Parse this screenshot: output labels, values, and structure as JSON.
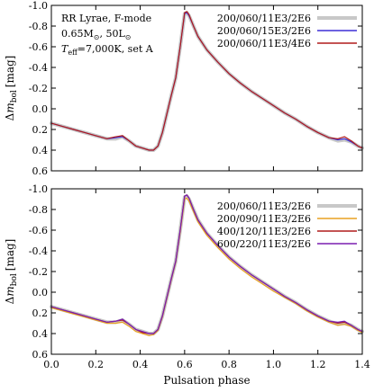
{
  "chart_data": [
    {
      "type": "line",
      "panel": "top",
      "xlabel": "",
      "ylabel": "Δm_bol [mag]",
      "ylabel_parts": {
        "delta": "Δ",
        "m": "m",
        "sub": "bol",
        "unit": "[mag]"
      },
      "xlim": [
        0.0,
        1.4
      ],
      "ylim": [
        0.6,
        -1.0
      ],
      "y_inverted": true,
      "x_ticks": [
        0.0,
        0.2,
        0.4,
        0.6,
        0.8,
        1.0,
        1.2,
        1.4
      ],
      "y_ticks": [
        -1.0,
        -0.8,
        -0.6,
        -0.4,
        -0.2,
        0.0,
        0.2,
        0.4,
        0.6
      ],
      "x_tick_labels": [
        "",
        "",
        "",
        "",
        "",
        "",
        "",
        ""
      ],
      "y_tick_labels": [
        "-1.0",
        "-0.8",
        "-0.6",
        "-0.4",
        "-0.2",
        "0.0",
        "0.2",
        "0.4",
        "0.6"
      ],
      "grid": false,
      "legend_position": "top-right",
      "annotation": {
        "line1": "RR Lyrae, F-mode",
        "line2_a": "0.65M",
        "line2_b": ", 50L",
        "line3_T": "T",
        "line3_sub": "eff",
        "line3_rest": "=7,000K, set A"
      },
      "series": [
        {
          "name": "200/060/11E3/2E6",
          "color": "#c8c8c8",
          "x": [
            0.0,
            0.05,
            0.1,
            0.15,
            0.2,
            0.25,
            0.29,
            0.32,
            0.35,
            0.38,
            0.41,
            0.44,
            0.46,
            0.48,
            0.5,
            0.52,
            0.54,
            0.56,
            0.58,
            0.6,
            0.61,
            0.62,
            0.64,
            0.66,
            0.7,
            0.75,
            0.8,
            0.85,
            0.9,
            0.95,
            1.0,
            1.05,
            1.1,
            1.15,
            1.2,
            1.25,
            1.29,
            1.32,
            1.35,
            1.38,
            1.4
          ],
          "y": [
            0.14,
            0.17,
            0.2,
            0.23,
            0.26,
            0.29,
            0.29,
            0.27,
            0.31,
            0.36,
            0.38,
            0.4,
            0.4,
            0.36,
            0.23,
            0.05,
            -0.13,
            -0.3,
            -0.6,
            -0.92,
            -0.93,
            -0.9,
            -0.8,
            -0.7,
            -0.57,
            -0.45,
            -0.34,
            -0.25,
            -0.17,
            -0.1,
            -0.03,
            0.04,
            0.1,
            0.17,
            0.23,
            0.28,
            0.31,
            0.3,
            0.32,
            0.36,
            0.38
          ]
        },
        {
          "name": "200/060/15E3/2E6",
          "color": "#3d2fd6",
          "x": [
            0.0,
            0.05,
            0.1,
            0.15,
            0.2,
            0.25,
            0.29,
            0.32,
            0.35,
            0.38,
            0.41,
            0.44,
            0.46,
            0.48,
            0.5,
            0.52,
            0.54,
            0.56,
            0.58,
            0.6,
            0.61,
            0.62,
            0.64,
            0.66,
            0.7,
            0.75,
            0.8,
            0.85,
            0.9,
            0.95,
            1.0,
            1.05,
            1.1,
            1.15,
            1.2,
            1.25,
            1.29,
            1.32,
            1.35,
            1.38,
            1.4
          ],
          "y": [
            0.14,
            0.17,
            0.2,
            0.23,
            0.26,
            0.29,
            0.28,
            0.27,
            0.31,
            0.36,
            0.38,
            0.4,
            0.4,
            0.36,
            0.23,
            0.05,
            -0.13,
            -0.3,
            -0.6,
            -0.92,
            -0.93,
            -0.9,
            -0.8,
            -0.7,
            -0.57,
            -0.45,
            -0.34,
            -0.25,
            -0.17,
            -0.1,
            -0.03,
            0.04,
            0.1,
            0.17,
            0.23,
            0.28,
            0.3,
            0.29,
            0.32,
            0.36,
            0.38
          ]
        },
        {
          "name": "200/060/11E3/4E6",
          "color": "#b01c1c",
          "x": [
            0.0,
            0.05,
            0.1,
            0.15,
            0.2,
            0.25,
            0.29,
            0.32,
            0.35,
            0.38,
            0.41,
            0.44,
            0.46,
            0.48,
            0.5,
            0.52,
            0.54,
            0.56,
            0.58,
            0.6,
            0.61,
            0.62,
            0.64,
            0.66,
            0.7,
            0.75,
            0.8,
            0.85,
            0.9,
            0.95,
            1.0,
            1.05,
            1.1,
            1.15,
            1.2,
            1.25,
            1.29,
            1.32,
            1.35,
            1.38,
            1.4
          ],
          "y": [
            0.14,
            0.17,
            0.2,
            0.23,
            0.26,
            0.29,
            0.27,
            0.26,
            0.31,
            0.36,
            0.38,
            0.4,
            0.4,
            0.36,
            0.23,
            0.05,
            -0.13,
            -0.3,
            -0.6,
            -0.93,
            -0.94,
            -0.91,
            -0.8,
            -0.7,
            -0.57,
            -0.45,
            -0.34,
            -0.25,
            -0.17,
            -0.1,
            -0.03,
            0.04,
            0.1,
            0.17,
            0.23,
            0.28,
            0.29,
            0.27,
            0.31,
            0.36,
            0.38
          ]
        }
      ]
    },
    {
      "type": "line",
      "panel": "bottom",
      "xlabel": "Pulsation phase",
      "ylabel": "Δm_bol [mag]",
      "ylabel_parts": {
        "delta": "Δ",
        "m": "m",
        "sub": "bol",
        "unit": "[mag]"
      },
      "xlim": [
        0.0,
        1.4
      ],
      "ylim": [
        0.6,
        -1.0
      ],
      "y_inverted": true,
      "x_ticks": [
        0.0,
        0.2,
        0.4,
        0.6,
        0.8,
        1.0,
        1.2,
        1.4
      ],
      "y_ticks": [
        -1.0,
        -0.8,
        -0.6,
        -0.4,
        -0.2,
        0.0,
        0.2,
        0.4,
        0.6
      ],
      "x_tick_labels": [
        "0.0",
        "0.2",
        "0.4",
        "0.6",
        "0.8",
        "1.0",
        "1.2",
        "1.4"
      ],
      "y_tick_labels": [
        "-1.0",
        "-0.8",
        "-0.6",
        "-0.4",
        "-0.2",
        "0.0",
        "0.2",
        "0.4",
        "0.6"
      ],
      "grid": false,
      "legend_position": "top-right",
      "series": [
        {
          "name": "200/060/11E3/2E6",
          "color": "#c8c8c8",
          "x": [
            0.0,
            0.05,
            0.1,
            0.15,
            0.2,
            0.25,
            0.29,
            0.32,
            0.35,
            0.38,
            0.41,
            0.44,
            0.46,
            0.48,
            0.5,
            0.52,
            0.54,
            0.56,
            0.58,
            0.6,
            0.61,
            0.62,
            0.64,
            0.66,
            0.7,
            0.75,
            0.8,
            0.85,
            0.9,
            0.95,
            1.0,
            1.05,
            1.1,
            1.15,
            1.2,
            1.25,
            1.29,
            1.32,
            1.35,
            1.38,
            1.4
          ],
          "y": [
            0.14,
            0.17,
            0.2,
            0.23,
            0.26,
            0.29,
            0.29,
            0.27,
            0.31,
            0.36,
            0.38,
            0.4,
            0.4,
            0.36,
            0.23,
            0.05,
            -0.13,
            -0.3,
            -0.6,
            -0.92,
            -0.93,
            -0.9,
            -0.8,
            -0.7,
            -0.57,
            -0.45,
            -0.34,
            -0.25,
            -0.17,
            -0.1,
            -0.03,
            0.04,
            0.1,
            0.17,
            0.23,
            0.28,
            0.31,
            0.3,
            0.32,
            0.36,
            0.38
          ]
        },
        {
          "name": "200/090/11E3/2E6",
          "color": "#e8a020",
          "x": [
            0.0,
            0.05,
            0.1,
            0.15,
            0.2,
            0.25,
            0.29,
            0.32,
            0.35,
            0.38,
            0.41,
            0.44,
            0.46,
            0.48,
            0.5,
            0.52,
            0.54,
            0.56,
            0.58,
            0.6,
            0.61,
            0.62,
            0.64,
            0.66,
            0.7,
            0.75,
            0.8,
            0.85,
            0.9,
            0.95,
            1.0,
            1.05,
            1.1,
            1.15,
            1.2,
            1.25,
            1.29,
            1.32,
            1.35,
            1.38,
            1.4
          ],
          "y": [
            0.15,
            0.18,
            0.21,
            0.24,
            0.27,
            0.3,
            0.3,
            0.29,
            0.33,
            0.38,
            0.4,
            0.42,
            0.41,
            0.37,
            0.24,
            0.06,
            -0.12,
            -0.29,
            -0.58,
            -0.9,
            -0.91,
            -0.88,
            -0.78,
            -0.68,
            -0.55,
            -0.43,
            -0.32,
            -0.23,
            -0.15,
            -0.08,
            -0.01,
            0.05,
            0.11,
            0.18,
            0.24,
            0.29,
            0.32,
            0.31,
            0.33,
            0.37,
            0.39
          ]
        },
        {
          "name": "400/120/11E3/2E6",
          "color": "#b01c1c",
          "x": [
            0.0,
            0.05,
            0.1,
            0.15,
            0.2,
            0.25,
            0.29,
            0.32,
            0.35,
            0.38,
            0.41,
            0.44,
            0.46,
            0.48,
            0.5,
            0.52,
            0.54,
            0.56,
            0.58,
            0.6,
            0.61,
            0.62,
            0.64,
            0.66,
            0.7,
            0.75,
            0.8,
            0.85,
            0.9,
            0.95,
            1.0,
            1.05,
            1.1,
            1.15,
            1.2,
            1.25,
            1.29,
            1.32,
            1.35,
            1.38,
            1.4
          ],
          "y": [
            0.14,
            0.17,
            0.2,
            0.23,
            0.26,
            0.29,
            0.28,
            0.27,
            0.31,
            0.36,
            0.39,
            0.4,
            0.4,
            0.36,
            0.23,
            0.05,
            -0.13,
            -0.3,
            -0.6,
            -0.93,
            -0.94,
            -0.91,
            -0.8,
            -0.7,
            -0.57,
            -0.45,
            -0.34,
            -0.25,
            -0.17,
            -0.1,
            -0.03,
            0.04,
            0.1,
            0.17,
            0.23,
            0.28,
            0.3,
            0.29,
            0.32,
            0.36,
            0.38
          ]
        },
        {
          "name": "600/220/11E3/2E6",
          "color": "#7a1fb0",
          "x": [
            0.0,
            0.05,
            0.1,
            0.15,
            0.2,
            0.25,
            0.29,
            0.32,
            0.35,
            0.38,
            0.41,
            0.44,
            0.46,
            0.48,
            0.5,
            0.52,
            0.54,
            0.56,
            0.58,
            0.6,
            0.61,
            0.62,
            0.64,
            0.66,
            0.7,
            0.75,
            0.8,
            0.85,
            0.9,
            0.95,
            1.0,
            1.05,
            1.1,
            1.15,
            1.2,
            1.25,
            1.29,
            1.32,
            1.35,
            1.38,
            1.4
          ],
          "y": [
            0.14,
            0.17,
            0.2,
            0.23,
            0.26,
            0.29,
            0.28,
            0.26,
            0.31,
            0.36,
            0.38,
            0.4,
            0.4,
            0.36,
            0.23,
            0.05,
            -0.13,
            -0.3,
            -0.6,
            -0.93,
            -0.94,
            -0.91,
            -0.8,
            -0.7,
            -0.57,
            -0.45,
            -0.34,
            -0.25,
            -0.17,
            -0.1,
            -0.03,
            0.04,
            0.1,
            0.17,
            0.23,
            0.28,
            0.29,
            0.28,
            0.32,
            0.36,
            0.38
          ]
        }
      ]
    }
  ]
}
